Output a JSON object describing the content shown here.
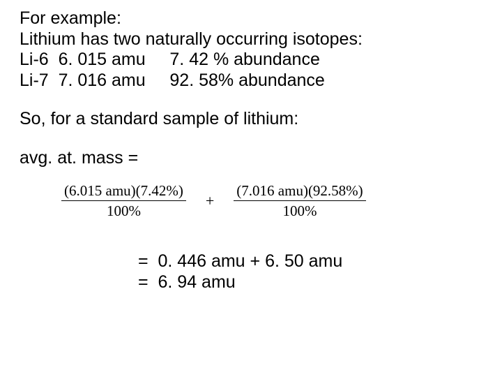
{
  "intro": {
    "l1": "For example:",
    "l2": "Lithium has two naturally occurring isotopes:",
    "l3": "Li-6  6. 015 amu     7. 42 % abundance",
    "l4": "Li-7  7. 016 amu     92. 58% abundance"
  },
  "sample_line": "So, for a standard sample of lithium:",
  "avg_label": "avg. at. mass =",
  "formula": {
    "frac1_num": "(6.015  amu)(7.42%)",
    "frac1_den": "100%",
    "plus": "+",
    "frac2_num": "(7.016  amu)(92.58%)",
    "frac2_den": "100%",
    "font_family": "Times New Roman",
    "fontsize_pt": 16,
    "rule_color": "#000000"
  },
  "results": {
    "r1": "=  0. 446 amu + 6. 50 amu",
    "r2": "=  6. 94 amu"
  },
  "style": {
    "body_font": "Arial",
    "body_fontsize_pt": 19,
    "text_color": "#000000",
    "background_color": "#ffffff"
  }
}
